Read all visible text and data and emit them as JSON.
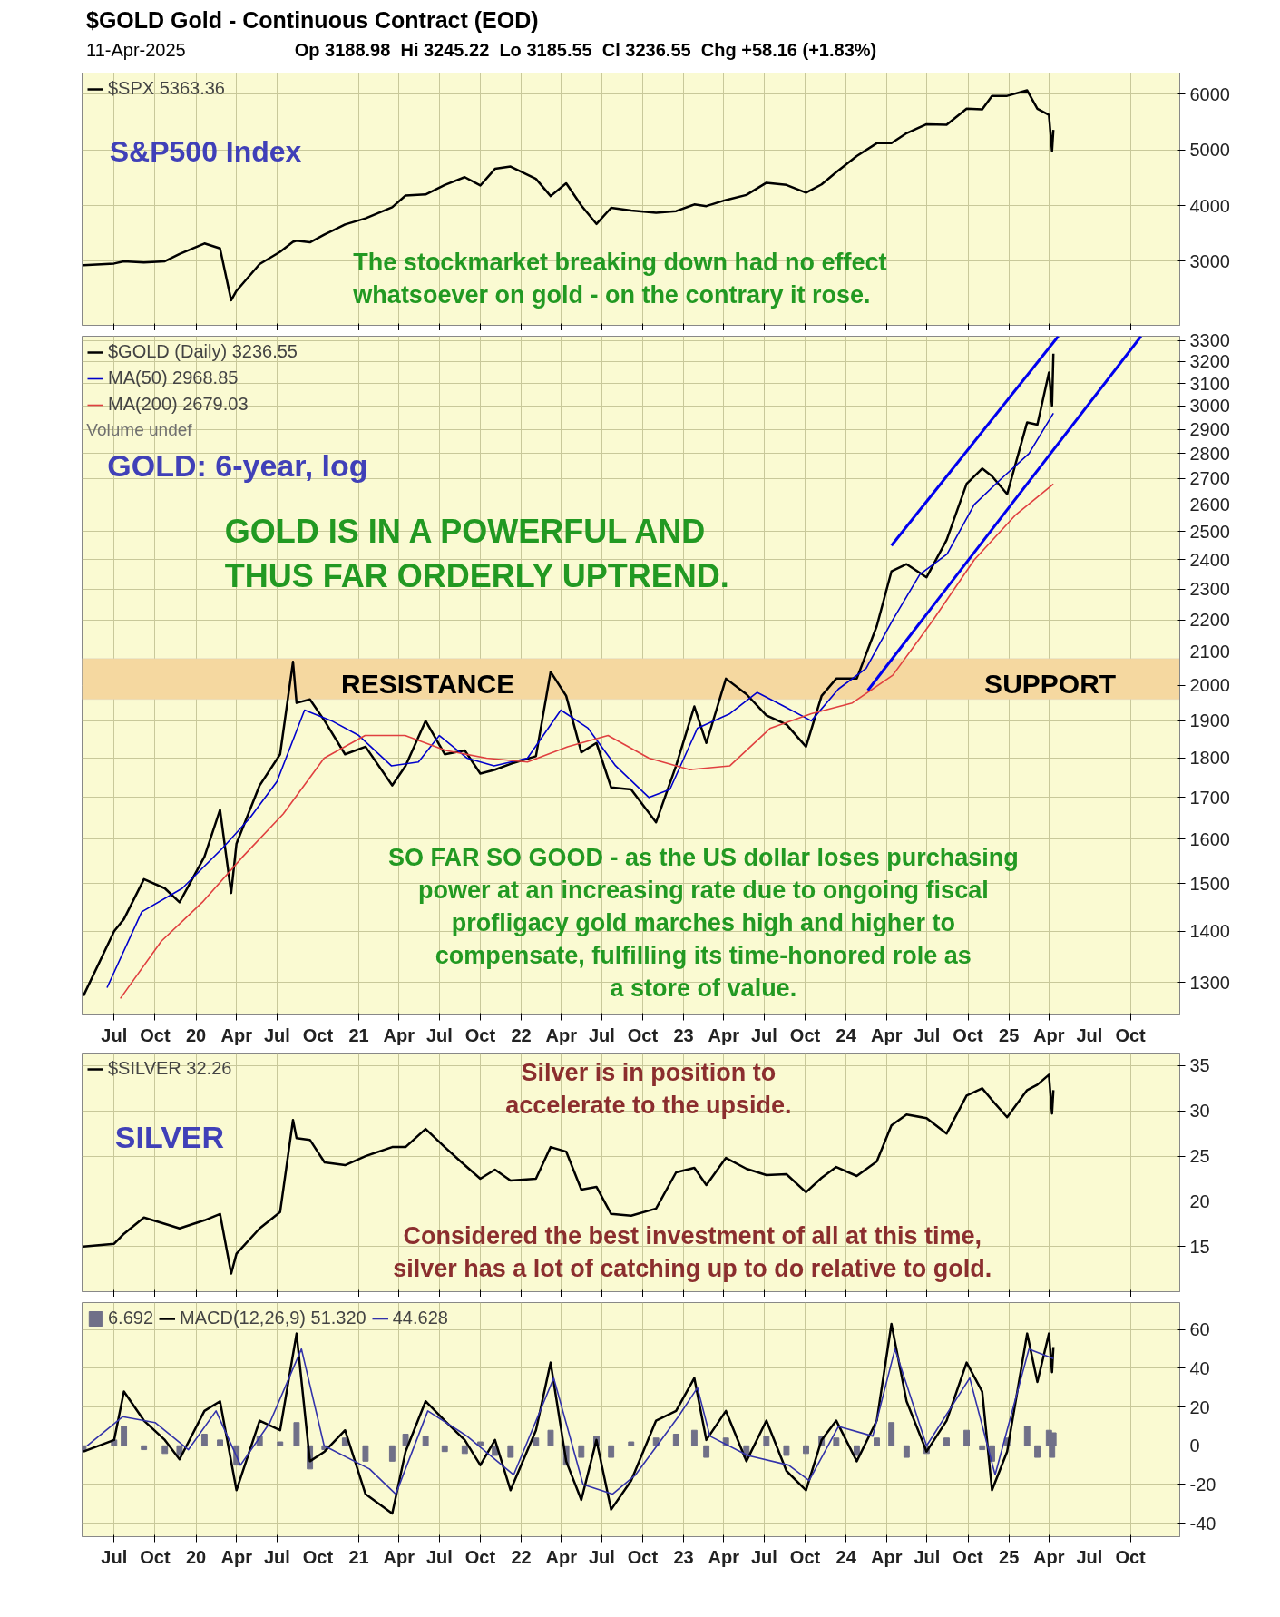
{
  "chart_data": [
    {
      "type": "line",
      "title": "$GOLD Gold - Continuous Contract (EOD)",
      "subtitle": "11-Apr-2025",
      "annotations": [
        "Op 3188.98  Hi 3245.22  Lo 3185.55  Cl 3236.55  Chg +58.16 (+1.83%)",
        "S&P500 Index",
        "The stockmarket breaking down had no effect\nwhatsoever on gold - on the contrary it rose."
      ],
      "x": [
        "2019-04-23",
        "2019-07-01",
        "2019-07-23",
        "2019-09-06",
        "2019-10-23",
        "2019-11-25",
        "2020-01-20",
        "2020-02-24",
        "2020-03-20",
        "2020-04-01",
        "2020-05-23",
        "2020-07-08",
        "2020-08-06",
        "2020-08-14",
        "2020-09-13",
        "2020-10-16",
        "2020-12-01",
        "2021-01-16",
        "2021-03-17",
        "2021-04-16",
        "2021-05-31",
        "2021-07-13",
        "2021-08-27",
        "2021-10-01",
        "2021-11-03",
        "2021-12-08",
        "2022-02-03",
        "2022-03-08",
        "2022-04-12",
        "2022-05-16",
        "2022-06-19",
        "2022-07-22",
        "2022-09-05",
        "2022-10-31",
        "2022-12-15",
        "2023-01-25",
        "2023-02-21",
        "2023-04-06",
        "2023-05-22",
        "2023-07-06",
        "2023-08-20",
        "2023-10-03",
        "2023-11-07",
        "2023-12-10",
        "2024-01-25",
        "2024-03-10",
        "2024-04-12",
        "2024-05-16",
        "2024-06-30",
        "2024-08-14",
        "2024-09-28",
        "2024-11-02",
        "2024-11-24",
        "2024-12-28",
        "2025-02-11",
        "2025-03-06",
        "2025-04-01",
        "2025-04-08",
        "2025-04-11"
      ],
      "series": [
        {
          "name": "$SPX 5363.36",
          "color": "#000000",
          "values": [
            2930,
            2960,
            3000,
            2980,
            3000,
            3130,
            3320,
            3230,
            2300,
            2470,
            2950,
            3170,
            3350,
            3370,
            3340,
            3480,
            3660,
            3770,
            3970,
            4180,
            4200,
            4370,
            4510,
            4360,
            4660,
            4700,
            4480,
            4170,
            4400,
            4000,
            3670,
            3960,
            3910,
            3870,
            3900,
            4020,
            3990,
            4100,
            4190,
            4410,
            4370,
            4230,
            4380,
            4600,
            4890,
            5120,
            5120,
            5300,
            5460,
            5450,
            5740,
            5730,
            5970,
            5970,
            6070,
            5740,
            5630,
            4980,
            5360
          ]
        }
      ],
      "xlim": [
        "2019-04-20",
        "2026-01-20"
      ],
      "ylim": [
        1850,
        6380
      ],
      "yticks": [
        3000,
        4000,
        5000,
        6000
      ],
      "xticks": [
        {
          "value": "2019-07",
          "label": null
        },
        {
          "value": "2019-10",
          "label": null
        },
        {
          "value": "2020",
          "label": null
        },
        {
          "value": "2020-04",
          "label": null
        },
        {
          "value": "2020-07",
          "label": null
        },
        {
          "value": "2020-10",
          "label": null
        },
        {
          "value": "2021",
          "label": null
        },
        {
          "value": "2021-04",
          "label": null
        },
        {
          "value": "2021-07",
          "label": null
        },
        {
          "value": "2021-10",
          "label": null
        },
        {
          "value": "2022",
          "label": null
        },
        {
          "value": "2022-04",
          "label": null
        },
        {
          "value": "2022-07",
          "label": null
        },
        {
          "value": "2022-10",
          "label": null
        },
        {
          "value": "2023",
          "label": null
        },
        {
          "value": "2023-04",
          "label": null
        },
        {
          "value": "2023-07",
          "label": null
        },
        {
          "value": "2023-10",
          "label": null
        },
        {
          "value": "2024",
          "label": null
        },
        {
          "value": "2024-04",
          "label": null
        },
        {
          "value": "2024-07",
          "label": null
        },
        {
          "value": "2024-10",
          "label": null
        },
        {
          "value": "2025",
          "label": null
        },
        {
          "value": "2025-04",
          "label": null
        },
        {
          "value": "2025-07",
          "label": null
        },
        {
          "value": "2025-10",
          "label": null
        }
      ],
      "tick_labels": "y",
      "grid": true,
      "legend": "top left"
    },
    {
      "type": "line",
      "log": true,
      "annotations": [
        "Volume undef",
        "GOLD: 6-year, log",
        "GOLD IS IN A POWERFUL AND\nTHUS FAR ORDERLY UPTREND.",
        "RESISTANCE",
        "SUPPORT",
        "SO FAR SO GOOD - as the US dollar loses purchasing\npower at an increasing rate due to ongoing fiscal\nprofligacy gold marches high and higher to\ncompensate, fulfilling its time-honored role as\na store of value."
      ],
      "x": [
        "2019-04-23",
        "2019-07-01",
        "2019-07-23",
        "2019-09-06",
        "2019-10-23",
        "2019-11-25",
        "2020-01-20",
        "2020-02-24",
        "2020-03-20",
        "2020-04-01",
        "2020-05-23",
        "2020-07-08",
        "2020-08-06",
        "2020-08-14",
        "2020-09-13",
        "2020-10-16",
        "2020-12-01",
        "2021-01-16",
        "2021-03-17",
        "2021-04-16",
        "2021-05-31",
        "2021-07-13",
        "2021-08-27",
        "2021-10-01",
        "2021-11-03",
        "2021-12-08",
        "2022-02-03",
        "2022-03-08",
        "2022-04-12",
        "2022-05-16",
        "2022-06-19",
        "2022-07-22",
        "2022-09-05",
        "2022-10-31",
        "2022-12-15",
        "2023-01-25",
        "2023-02-21",
        "2023-04-06",
        "2023-05-22",
        "2023-07-06",
        "2023-08-20",
        "2023-10-03",
        "2023-11-07",
        "2023-12-10",
        "2024-01-25",
        "2024-03-10",
        "2024-04-12",
        "2024-05-16",
        "2024-06-30",
        "2024-08-14",
        "2024-09-28",
        "2024-11-02",
        "2024-11-24",
        "2024-12-28",
        "2025-02-11",
        "2025-03-06",
        "2025-04-01",
        "2025-04-08",
        "2025-04-11"
      ],
      "series": [
        {
          "name": "$GOLD (Daily) 3236.55",
          "color": "#000000",
          "values": [
            1275,
            1400,
            1425,
            1510,
            1490,
            1460,
            1560,
            1670,
            1480,
            1590,
            1730,
            1810,
            2070,
            1950,
            1960,
            1900,
            1810,
            1830,
            1730,
            1780,
            1900,
            1810,
            1820,
            1760,
            1770,
            1785,
            1805,
            2040,
            1970,
            1815,
            1840,
            1725,
            1720,
            1640,
            1780,
            1940,
            1840,
            2020,
            1975,
            1915,
            1890,
            1830,
            1970,
            2020,
            2020,
            2180,
            2360,
            2385,
            2340,
            2470,
            2680,
            2740,
            2710,
            2640,
            2930,
            2920,
            3150,
            3000,
            3236.55
          ]
        },
        {
          "name": "MA(50) 2968.85",
          "color": "#0000cc",
          "x": [
            "2019-06-15",
            "2019-09-01",
            "2019-12-01",
            "2020-03-01",
            "2020-05-01",
            "2020-07-01",
            "2020-09-01",
            "2020-11-01",
            "2021-01-01",
            "2021-03-15",
            "2021-05-15",
            "2021-07-01",
            "2021-09-01",
            "2021-11-01",
            "2022-01-15",
            "2022-03-31",
            "2022-05-31",
            "2022-08-01",
            "2022-10-15",
            "2022-12-01",
            "2023-02-01",
            "2023-04-15",
            "2023-06-15",
            "2023-08-15",
            "2023-10-15",
            "2023-12-15",
            "2024-02-15",
            "2024-04-15",
            "2024-06-15",
            "2024-08-15",
            "2024-10-15",
            "2024-12-15",
            "2025-02-15",
            "2025-04-11"
          ],
          "values": [
            1290,
            1440,
            1490,
            1580,
            1650,
            1740,
            1930,
            1900,
            1860,
            1780,
            1790,
            1860,
            1800,
            1780,
            1800,
            1930,
            1880,
            1780,
            1700,
            1720,
            1880,
            1920,
            1980,
            1940,
            1900,
            1990,
            2050,
            2200,
            2350,
            2420,
            2600,
            2700,
            2800,
            2968.85
          ]
        },
        {
          "name": "MA(200) 2679.03",
          "color": "#e04040",
          "x": [
            "2019-07-15",
            "2019-10-15",
            "2020-01-15",
            "2020-04-15",
            "2020-07-15",
            "2020-10-15",
            "2021-01-15",
            "2021-04-15",
            "2021-07-15",
            "2021-10-15",
            "2022-01-15",
            "2022-04-15",
            "2022-07-15",
            "2022-10-15",
            "2023-01-15",
            "2023-04-15",
            "2023-07-15",
            "2023-10-15",
            "2024-01-15",
            "2024-04-15",
            "2024-07-15",
            "2024-10-15",
            "2025-01-15",
            "2025-04-11"
          ],
          "values": [
            1270,
            1380,
            1460,
            1560,
            1660,
            1800,
            1860,
            1860,
            1820,
            1800,
            1790,
            1830,
            1860,
            1800,
            1770,
            1780,
            1880,
            1920,
            1950,
            2030,
            2200,
            2400,
            2560,
            2679.03
          ]
        },
        {
          "color": "#0000ee",
          "x": [
            "2024-02-19",
            "2025-10-25"
          ],
          "values": [
            1986,
            3320
          ]
        },
        {
          "color": "#0000ee",
          "x": [
            "2024-04-12",
            "2025-04-22"
          ],
          "values": [
            2450,
            3320
          ]
        }
      ],
      "bands": [
        {
          "axis": "y",
          "from": 1960,
          "to": 2080,
          "color": "#f5d8a0"
        }
      ],
      "xlim": [
        "2019-04-20",
        "2026-01-20"
      ],
      "ylim": [
        1240,
        3320
      ],
      "yticks": [
        1300,
        1400,
        1500,
        1600,
        1700,
        1800,
        1900,
        2000,
        2100,
        2200,
        2300,
        2400,
        2500,
        2600,
        2700,
        2800,
        2900,
        3000,
        3100,
        3200,
        3300
      ],
      "xticks": [
        {
          "value": "2019-07",
          "label": "Jul"
        },
        {
          "value": "2019-10",
          "label": "Oct"
        },
        {
          "value": "2020",
          "label": "20"
        },
        {
          "value": "2020-04",
          "label": "Apr"
        },
        {
          "value": "2020-07",
          "label": "Jul"
        },
        {
          "value": "2020-10",
          "label": "Oct"
        },
        {
          "value": "2021",
          "label": "21"
        },
        {
          "value": "2021-04",
          "label": "Apr"
        },
        {
          "value": "2021-07",
          "label": "Jul"
        },
        {
          "value": "2021-10",
          "label": "Oct"
        },
        {
          "value": "2022",
          "label": "22"
        },
        {
          "value": "2022-04",
          "label": "Apr"
        },
        {
          "value": "2022-07",
          "label": "Jul"
        },
        {
          "value": "2022-10",
          "label": "Oct"
        },
        {
          "value": "2023",
          "label": "23"
        },
        {
          "value": "2023-04",
          "label": "Apr"
        },
        {
          "value": "2023-07",
          "label": "Jul"
        },
        {
          "value": "2023-10",
          "label": "Oct"
        },
        {
          "value": "2024",
          "label": "24"
        },
        {
          "value": "2024-04",
          "label": "Apr"
        },
        {
          "value": "2024-07",
          "label": "Jul"
        },
        {
          "value": "2024-10",
          "label": "Oct"
        },
        {
          "value": "2025",
          "label": "25"
        },
        {
          "value": "2025-04",
          "label": "Apr"
        },
        {
          "value": "2025-07",
          "label": "Jul"
        },
        {
          "value": "2025-10",
          "label": "Oct"
        }
      ],
      "grid": true,
      "legend": "top left"
    },
    {
      "type": "line",
      "annotations": [
        "SILVER",
        "Silver is in position to\naccelerate to the upside.",
        "Considered the best investment of all at this time,\nsilver has a lot of catching up to do relative to gold."
      ],
      "x": [
        "2019-04-23",
        "2019-07-01",
        "2019-07-23",
        "2019-09-06",
        "2019-10-23",
        "2019-11-25",
        "2020-01-20",
        "2020-02-24",
        "2020-03-20",
        "2020-04-01",
        "2020-05-23",
        "2020-07-08",
        "2020-08-06",
        "2020-08-14",
        "2020-09-13",
        "2020-10-16",
        "2020-12-01",
        "2021-01-16",
        "2021-03-17",
        "2021-04-16",
        "2021-05-31",
        "2021-07-13",
        "2021-08-27",
        "2021-10-01",
        "2021-11-03",
        "2021-12-08",
        "2022-02-03",
        "2022-03-08",
        "2022-04-12",
        "2022-05-16",
        "2022-06-19",
        "2022-07-22",
        "2022-09-05",
        "2022-10-31",
        "2022-12-15",
        "2023-01-25",
        "2023-02-21",
        "2023-04-06",
        "2023-05-22",
        "2023-07-06",
        "2023-08-20",
        "2023-10-03",
        "2023-11-07",
        "2023-12-10",
        "2024-01-25",
        "2024-03-10",
        "2024-04-12",
        "2024-05-16",
        "2024-06-30",
        "2024-08-14",
        "2024-09-28",
        "2024-11-02",
        "2024-11-24",
        "2024-12-28",
        "2025-02-11",
        "2025-03-06",
        "2025-04-01",
        "2025-04-08",
        "2025-04-11"
      ],
      "series": [
        {
          "name": "$SILVER 32.26",
          "color": "#000000",
          "values": [
            15.0,
            15.3,
            16.4,
            18.2,
            17.5,
            17.0,
            17.9,
            18.6,
            12.0,
            14.2,
            17.0,
            18.8,
            29.0,
            27.0,
            26.8,
            24.3,
            24.0,
            25.0,
            26.0,
            26.0,
            28.0,
            26.0,
            24.0,
            22.5,
            23.5,
            22.3,
            22.5,
            26.0,
            25.5,
            21.3,
            21.6,
            18.6,
            18.4,
            19.2,
            23.2,
            23.7,
            21.8,
            24.8,
            23.6,
            22.9,
            23.0,
            21.0,
            22.6,
            23.8,
            22.8,
            24.4,
            28.4,
            29.6,
            29.2,
            27.5,
            31.7,
            32.5,
            31.2,
            29.3,
            32.3,
            32.9,
            34.0,
            29.7,
            32.3
          ]
        }
      ],
      "xlim": [
        "2019-04-20",
        "2026-01-20"
      ],
      "ylim": [
        10,
        36.4
      ],
      "yticks": [
        15,
        20,
        25,
        30,
        35
      ],
      "xticks": [
        {
          "value": "2019-07",
          "label": null
        },
        {
          "value": "2019-10",
          "label": null
        },
        {
          "value": "2020",
          "label": null
        },
        {
          "value": "2020-04",
          "label": null
        },
        {
          "value": "2020-07",
          "label": null
        },
        {
          "value": "2020-10",
          "label": null
        },
        {
          "value": "2021",
          "label": null
        },
        {
          "value": "2021-04",
          "label": null
        },
        {
          "value": "2021-07",
          "label": null
        },
        {
          "value": "2021-10",
          "label": null
        },
        {
          "value": "2022",
          "label": null
        },
        {
          "value": "2022-04",
          "label": null
        },
        {
          "value": "2022-07",
          "label": null
        },
        {
          "value": "2022-10",
          "label": null
        },
        {
          "value": "2023",
          "label": null
        },
        {
          "value": "2023-04",
          "label": null
        },
        {
          "value": "2023-07",
          "label": null
        },
        {
          "value": "2023-10",
          "label": null
        },
        {
          "value": "2024",
          "label": null
        },
        {
          "value": "2024-04",
          "label": null
        },
        {
          "value": "2024-07",
          "label": null
        },
        {
          "value": "2024-10",
          "label": null
        },
        {
          "value": "2025",
          "label": null
        },
        {
          "value": "2025-04",
          "label": null
        },
        {
          "value": "2025-07",
          "label": null
        },
        {
          "value": "2025-10",
          "label": null
        }
      ],
      "tick_labels": "y",
      "grid": true,
      "legend": "top left"
    },
    {
      "type": "line",
      "x": [
        "2019-04-23",
        "2019-07-01",
        "2019-07-23",
        "2019-09-06",
        "2019-10-23",
        "2019-11-25",
        "2020-01-20",
        "2020-02-24",
        "2020-04-01",
        "2020-05-23",
        "2020-07-08",
        "2020-08-14",
        "2020-09-13",
        "2020-10-16",
        "2020-12-01",
        "2021-01-16",
        "2021-03-17",
        "2021-04-16",
        "2021-05-31",
        "2021-07-13",
        "2021-08-27",
        "2021-10-01",
        "2021-11-03",
        "2021-12-08",
        "2022-02-03",
        "2022-03-08",
        "2022-04-12",
        "2022-05-16",
        "2022-06-19",
        "2022-07-22",
        "2022-09-05",
        "2022-10-31",
        "2022-12-15",
        "2023-01-25",
        "2023-02-21",
        "2023-04-06",
        "2023-05-22",
        "2023-07-06",
        "2023-08-20",
        "2023-10-03",
        "2023-11-07",
        "2023-12-10",
        "2024-01-25",
        "2024-03-10",
        "2024-04-12",
        "2024-05-16",
        "2024-06-30",
        "2024-08-14",
        "2024-09-28",
        "2024-11-02",
        "2024-11-24",
        "2024-12-28",
        "2025-02-11",
        "2025-03-06",
        "2025-04-01",
        "2025-04-08",
        "2025-04-11"
      ],
      "series": [
        {
          "name": "6.692",
          "type": "bar",
          "color": "#707088",
          "values": [
            -3,
            3,
            10,
            -2,
            -4,
            -5,
            6,
            3,
            -10,
            5,
            2,
            12,
            -12,
            -2,
            4,
            -8,
            -8,
            6,
            5,
            -3,
            -4,
            2,
            -5,
            -6,
            4,
            8,
            -10,
            -6,
            5,
            -6,
            2,
            4,
            6,
            8,
            -6,
            4,
            -6,
            5,
            -5,
            -4,
            5,
            4,
            -5,
            4,
            12,
            -6,
            -4,
            4,
            8,
            -2,
            -8,
            4,
            10,
            -6,
            8,
            -6,
            6.7
          ]
        },
        {
          "name": "MACD(12,26,9) 51.320",
          "color": "#000000",
          "values": [
            -3,
            3,
            28,
            13,
            3,
            -7,
            18,
            23,
            -23,
            13,
            8,
            58,
            -8,
            -3,
            8,
            -25,
            -35,
            -3,
            23,
            13,
            3,
            -10,
            3,
            -23,
            8,
            43,
            -8,
            -28,
            3,
            -33,
            -18,
            13,
            18,
            35,
            3,
            18,
            -8,
            13,
            -13,
            -23,
            3,
            13,
            -8,
            13,
            63,
            23,
            -3,
            13,
            43,
            28,
            -23,
            -3,
            58,
            33,
            58,
            38,
            51
          ]
        },
        {
          "name": "44.628",
          "color": "#3333aa",
          "x": [
            "2019-05-01",
            "2019-07-20",
            "2019-10-01",
            "2019-12-15",
            "2020-02-15",
            "2020-04-10",
            "2020-06-15",
            "2020-08-25",
            "2020-10-15",
            "2021-01-25",
            "2021-03-25",
            "2021-06-05",
            "2021-09-01",
            "2021-12-15",
            "2022-03-15",
            "2022-05-20",
            "2022-07-25",
            "2022-09-15",
            "2022-12-20",
            "2023-02-01",
            "2023-03-01",
            "2023-05-25",
            "2023-08-25",
            "2023-10-10",
            "2023-12-15",
            "2024-03-01",
            "2024-04-20",
            "2024-06-30",
            "2024-10-05",
            "2024-12-01",
            "2025-02-15",
            "2025-04-11"
          ],
          "values": [
            0,
            15,
            12,
            -2,
            18,
            -10,
            12,
            50,
            0,
            -12,
            -25,
            18,
            5,
            -15,
            35,
            -20,
            -25,
            -15,
            15,
            30,
            5,
            -5,
            -10,
            -18,
            10,
            5,
            50,
            0,
            35,
            -15,
            50,
            45
          ]
        }
      ],
      "xlim": [
        "2019-04-20",
        "2026-01-20"
      ],
      "ylim": [
        -47,
        74
      ],
      "yticks": [
        -40,
        -20,
        0,
        20,
        40,
        60
      ],
      "xticks": [
        {
          "value": "2019-07",
          "label": "Jul"
        },
        {
          "value": "2019-10",
          "label": "Oct"
        },
        {
          "value": "2020",
          "label": "20"
        },
        {
          "value": "2020-04",
          "label": "Apr"
        },
        {
          "value": "2020-07",
          "label": "Jul"
        },
        {
          "value": "2020-10",
          "label": "Oct"
        },
        {
          "value": "2021",
          "label": "21"
        },
        {
          "value": "2021-04",
          "label": "Apr"
        },
        {
          "value": "2021-07",
          "label": "Jul"
        },
        {
          "value": "2021-10",
          "label": "Oct"
        },
        {
          "value": "2022",
          "label": "22"
        },
        {
          "value": "2022-04",
          "label": "Apr"
        },
        {
          "value": "2022-07",
          "label": "Jul"
        },
        {
          "value": "2022-10",
          "label": "Oct"
        },
        {
          "value": "2023",
          "label": "23"
        },
        {
          "value": "2023-04",
          "label": "Apr"
        },
        {
          "value": "2023-07",
          "label": "Jul"
        },
        {
          "value": "2023-10",
          "label": "Oct"
        },
        {
          "value": "2024",
          "label": "24"
        },
        {
          "value": "2024-04",
          "label": "Apr"
        },
        {
          "value": "2024-07",
          "label": "Jul"
        },
        {
          "value": "2024-10",
          "label": "Oct"
        },
        {
          "value": "2025",
          "label": "25"
        },
        {
          "value": "2025-04",
          "label": "Apr"
        },
        {
          "value": "2025-07",
          "label": "Jul"
        },
        {
          "value": "2025-10",
          "label": "Oct"
        }
      ],
      "grid": true,
      "legend": "top left"
    }
  ]
}
